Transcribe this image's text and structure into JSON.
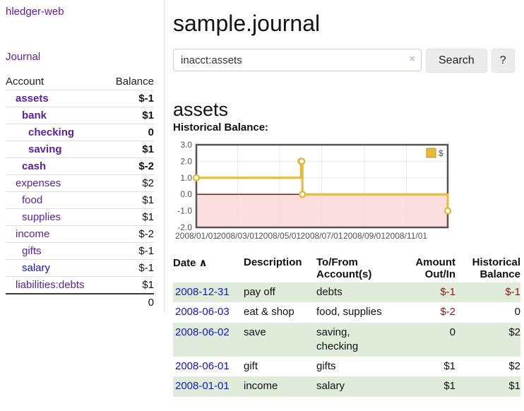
{
  "colors": {
    "link_purple": "#5b21a6",
    "link_blue": "#1414d2",
    "negative_dark": "#941414",
    "negative_light": "#c98f8f",
    "row_green": "#dfecda",
    "chart_gold": "#e4ba37",
    "chart_gold_dark": "#b8962e",
    "zero_line": "#8b0000",
    "negative_region": "#fbd8d8",
    "grid_line": "#e8e8e8",
    "chart_border": "#545454",
    "tick_text": "#545454"
  },
  "sidebar": {
    "app_title": "hledger-web",
    "journal_label": "Journal",
    "accounts_table": {
      "headers": [
        "Account",
        "Balance"
      ],
      "rows": [
        {
          "account": "assets",
          "balance": "$-1",
          "indent": 1,
          "bold": true,
          "link_color": "purple"
        },
        {
          "account": "bank",
          "balance": "$1",
          "indent": 2,
          "bold": true,
          "link_color": "purple"
        },
        {
          "account": "checking",
          "balance": "0",
          "indent": 3,
          "bold": true,
          "link_color": "purple"
        },
        {
          "account": "saving",
          "balance": "$1",
          "indent": 3,
          "bold": true,
          "link_color": "purple"
        },
        {
          "account": "cash",
          "balance": "$-2",
          "indent": 2,
          "bold": true,
          "link_color": "purple"
        },
        {
          "account": "expenses",
          "balance": "$2",
          "indent": 1,
          "bold": false,
          "link_color": "purple"
        },
        {
          "account": "food",
          "balance": "$1",
          "indent": 2,
          "bold": false,
          "link_color": "purple"
        },
        {
          "account": "supplies",
          "balance": "$1",
          "indent": 2,
          "bold": false,
          "link_color": "purple"
        },
        {
          "account": "income",
          "balance": "$-2",
          "indent": 1,
          "bold": false,
          "link_color": "purple"
        },
        {
          "account": "gifts",
          "balance": "$-1",
          "indent": 2,
          "bold": false,
          "link_color": "purple"
        },
        {
          "account": "salary",
          "balance": "$-1",
          "indent": 2,
          "bold": false,
          "link_color": "blue"
        },
        {
          "account": "liabilities:debts",
          "balance": "$1",
          "indent": 1,
          "bold": false,
          "link_color": "purple"
        }
      ],
      "total": "0"
    }
  },
  "main": {
    "title": "sample.journal",
    "search": {
      "value": "inacct:assets",
      "clear_icon": "×",
      "search_button": "Search",
      "help_button": "?"
    },
    "account_heading": "assets",
    "chart_label": "Historical Balance:",
    "register_table": {
      "headers": [
        {
          "label": "Date",
          "sort_icon": "∧"
        },
        {
          "label": "Description"
        },
        {
          "label": "To/From Account(s)"
        },
        {
          "label": "Amount Out/In"
        },
        {
          "label": "Historical Balance"
        }
      ],
      "rows": [
        {
          "date": "2008-12-31",
          "description": "pay off",
          "accounts": "debts",
          "amount": "$-1",
          "balance": "$-1"
        },
        {
          "date": "2008-06-03",
          "description": "eat & shop",
          "accounts": "food, supplies",
          "amount": "$-2",
          "balance": "0"
        },
        {
          "date": "2008-06-02",
          "description": "save",
          "accounts": "saving, checking",
          "amount": "0",
          "balance": "$2"
        },
        {
          "date": "2008-06-01",
          "description": "gift",
          "accounts": "gifts",
          "amount": "$1",
          "balance": "$2"
        },
        {
          "date": "2008-01-01",
          "description": "income",
          "accounts": "salary",
          "amount": "$1",
          "balance": "$1"
        }
      ]
    }
  },
  "chart_data": {
    "type": "line",
    "step": true,
    "title": "Historical Balance:",
    "series": [
      {
        "name": "$",
        "points": [
          {
            "date": "2008-01-01",
            "value": 1
          },
          {
            "date": "2008-06-01",
            "value": 2
          },
          {
            "date": "2008-06-02",
            "value": 2
          },
          {
            "date": "2008-06-03",
            "value": 0
          },
          {
            "date": "2008-12-31",
            "value": -1
          }
        ]
      }
    ],
    "xlim": [
      "2008-01-01",
      "2008-12-31"
    ],
    "ylim": [
      -2,
      3
    ],
    "y_ticks": [
      3.0,
      2.0,
      1.0,
      0.0,
      -1.0,
      -2.0
    ],
    "x_ticks": [
      "2008/01/01",
      "2008/03/01",
      "2008/05/01",
      "2008/07/01",
      "2008/09/01",
      "2008/11/01"
    ],
    "grid": true,
    "legend_position": "top-right",
    "negative_region_shaded": true
  }
}
